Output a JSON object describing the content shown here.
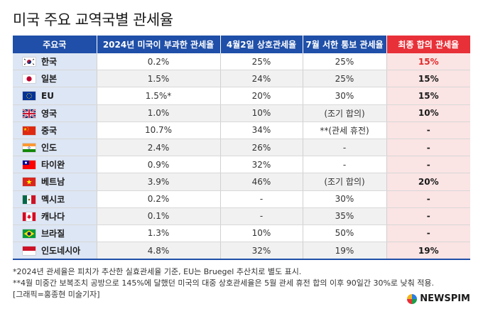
{
  "title": "미국 주요 교역국별 관세율",
  "table": {
    "headers": [
      "주요국",
      "2024년 미국이 부과한 관세율",
      "4월2일 상호관세율",
      "7월 서한 통보 관세율",
      "최종 합의 관세율"
    ],
    "rows": [
      {
        "flag": "korea-flag-icon",
        "country": "한국",
        "y2024": "0.2%",
        "apr2": "25%",
        "jul": "25%",
        "final": "15%",
        "final_red": true
      },
      {
        "flag": "japan-flag-icon",
        "country": "일본",
        "y2024": "1.5%",
        "apr2": "24%",
        "jul": "25%",
        "final": "15%",
        "final_red": false
      },
      {
        "flag": "eu-flag-icon",
        "country": "EU",
        "y2024": "1.5%*",
        "apr2": "20%",
        "jul": "30%",
        "final": "15%",
        "final_red": false
      },
      {
        "flag": "uk-flag-icon",
        "country": "영국",
        "y2024": "1.0%",
        "apr2": "10%",
        "jul": "(조기 합의)",
        "final": "10%",
        "final_red": false
      },
      {
        "flag": "china-flag-icon",
        "country": "중국",
        "y2024": "10.7%",
        "apr2": "34%",
        "jul": "**(관세 휴전)",
        "final": "-",
        "final_red": false
      },
      {
        "flag": "india-flag-icon",
        "country": "인도",
        "y2024": "2.4%",
        "apr2": "26%",
        "jul": "-",
        "final": "-",
        "final_red": false
      },
      {
        "flag": "taiwan-flag-icon",
        "country": "타이완",
        "y2024": "0.9%",
        "apr2": "32%",
        "jul": "-",
        "final": "-",
        "final_red": false
      },
      {
        "flag": "vietnam-flag-icon",
        "country": "베트남",
        "y2024": "3.9%",
        "apr2": "46%",
        "jul": "(조기 합의)",
        "final": "20%",
        "final_red": false
      },
      {
        "flag": "mexico-flag-icon",
        "country": "멕시코",
        "y2024": "0.2%",
        "apr2": "-",
        "jul": "30%",
        "final": "-",
        "final_red": false
      },
      {
        "flag": "canada-flag-icon",
        "country": "캐나다",
        "y2024": "0.1%",
        "apr2": "-",
        "jul": "35%",
        "final": "-",
        "final_red": false
      },
      {
        "flag": "brazil-flag-icon",
        "country": "브라질",
        "y2024": "1.3%",
        "apr2": "10%",
        "jul": "50%",
        "final": "-",
        "final_red": false
      },
      {
        "flag": "indonesia-flag-icon",
        "country": "인도네시아",
        "y2024": "4.8%",
        "apr2": "32%",
        "jul": "19%",
        "final": "19%",
        "final_red": false
      }
    ]
  },
  "notes": [
    "*2024년 관세율은 피치가 추산한 실효관세율 기준, EU는 Bruegel 추산치로 별도 표시.",
    "**4월 미중간 보복조치 공방으로 145%에 달했던 미국의 대중 상호관세율은 5월 관세 휴전 합의 이후 90일간 30%로 낮춰 적용.",
    "[그래픽=홍종현 미술기자]"
  ],
  "logo": "NEWSPIM",
  "colors": {
    "header_blue": "#1f4fa8",
    "header_red": "#e83038",
    "final_bg": "#fbe4e4",
    "country_bg": "#dde6f4",
    "highlight_red": "#e02828"
  }
}
